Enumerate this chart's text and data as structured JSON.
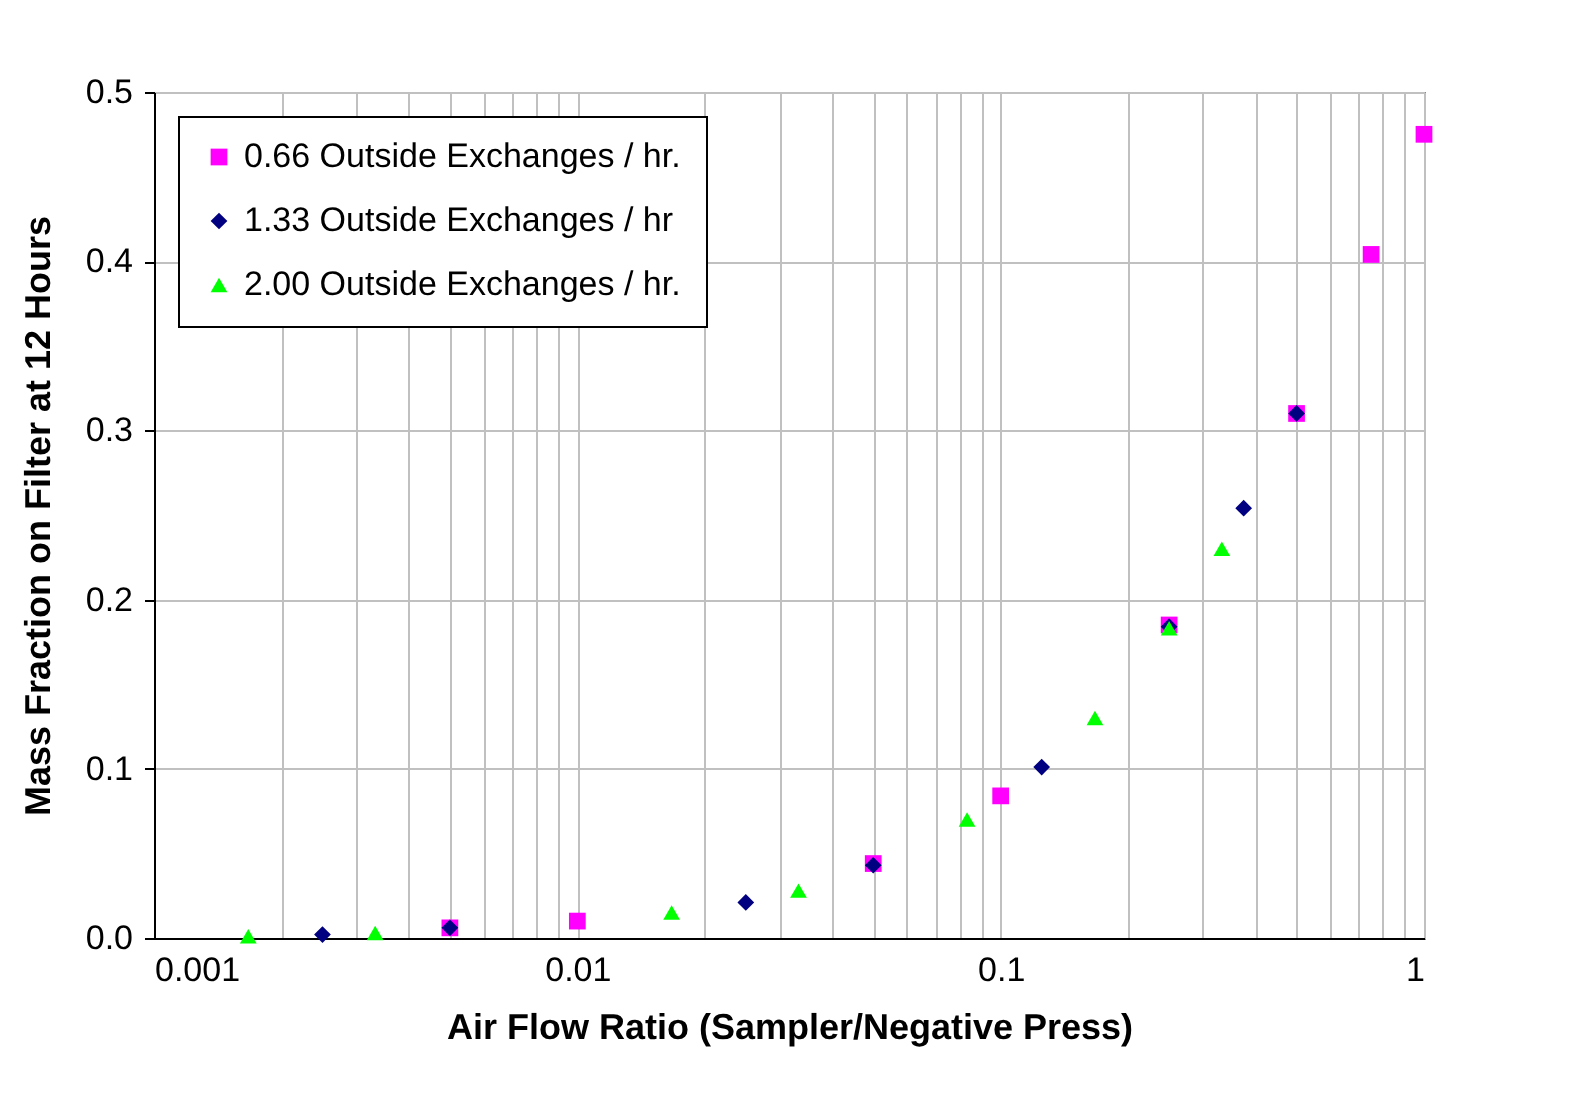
{
  "chart_data": {
    "type": "scatter",
    "xlabel": "Air Flow Ratio (Sampler/Negative Press)",
    "ylabel": "Mass Fraction on Filter at 12 Hours",
    "log": "x",
    "xlim": [
      0.001,
      1
    ],
    "xticks": [
      0.001,
      0.01,
      0.1,
      1
    ],
    "ylim": [
      0,
      0.5
    ],
    "yticks": [
      {
        "value": 0,
        "label": "0.0"
      },
      0.1,
      0.2,
      0.3,
      0.4,
      0.5
    ],
    "grid": true,
    "legend": "top left",
    "series": [
      {
        "name": "0.66 Outside Exchanges / hr.",
        "color": "#ff00ff",
        "marker": "square",
        "x": [
          0.005,
          0.01,
          0.05,
          0.1,
          0.25,
          0.5,
          0.75,
          1
        ],
        "values": [
          0.006,
          0.01,
          0.044,
          0.084,
          0.185,
          0.31,
          0.404,
          0.475
        ]
      },
      {
        "name": "1.33 Outside Exchanges / hr",
        "color": "#000080",
        "marker": "diamond",
        "x": [
          0.0025,
          0.005,
          0.025,
          0.05,
          0.125,
          0.25,
          0.375,
          0.5
        ],
        "values": [
          0.002,
          0.006,
          0.021,
          0.043,
          0.101,
          0.184,
          0.254,
          0.31
        ]
      },
      {
        "name": "2.00 Outside Exchanges / hr.",
        "color": "#00ff00",
        "marker": "triangle",
        "x": [
          0.00167,
          0.00333,
          0.0167,
          0.0333,
          0.0833,
          0.167,
          0.25,
          0.333
        ],
        "values": [
          0.001,
          0.003,
          0.015,
          0.028,
          0.07,
          0.13,
          0.183,
          0.23
        ]
      }
    ]
  }
}
